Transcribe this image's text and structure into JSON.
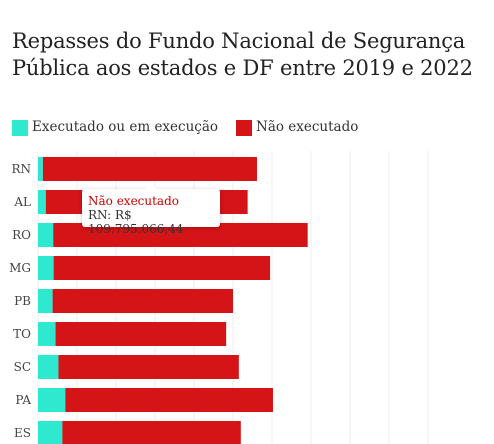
{
  "title": "Repasses do Fundo Nacional de Segurança Pública aos estados e DF entre 2019 e 2022",
  "legend": [
    {
      "label": "Executado ou em execução",
      "color": "#2ee8cf"
    },
    {
      "label": "Não executado",
      "color": "#d51418"
    }
  ],
  "tooltip": {
    "series": "Não executado",
    "state": "RN",
    "value": "R$ 109.795.066,44"
  },
  "chart_data": {
    "type": "bar",
    "orientation": "horizontal",
    "stacked": true,
    "title": "Repasses do Fundo Nacional de Segurança Pública aos estados e DF entre 2019 e 2022",
    "categories": [
      "RN",
      "AL",
      "RO",
      "MG",
      "PB",
      "TO",
      "SC",
      "PA",
      "ES"
    ],
    "series": [
      {
        "name": "Executado ou em execução",
        "color": "#2ee8cf",
        "values": [
          2.5,
          4.0,
          7.8,
          8.0,
          7.5,
          9.0,
          10.5,
          14.0,
          12.5
        ]
      },
      {
        "name": "Não executado",
        "color": "#d51418",
        "values": [
          109.8,
          103.5,
          130.5,
          111.0,
          92.5,
          87.5,
          92.5,
          106.5,
          91.5
        ]
      }
    ],
    "xlim": [
      0,
      200
    ],
    "grid": true,
    "legend_position": "top-left"
  }
}
